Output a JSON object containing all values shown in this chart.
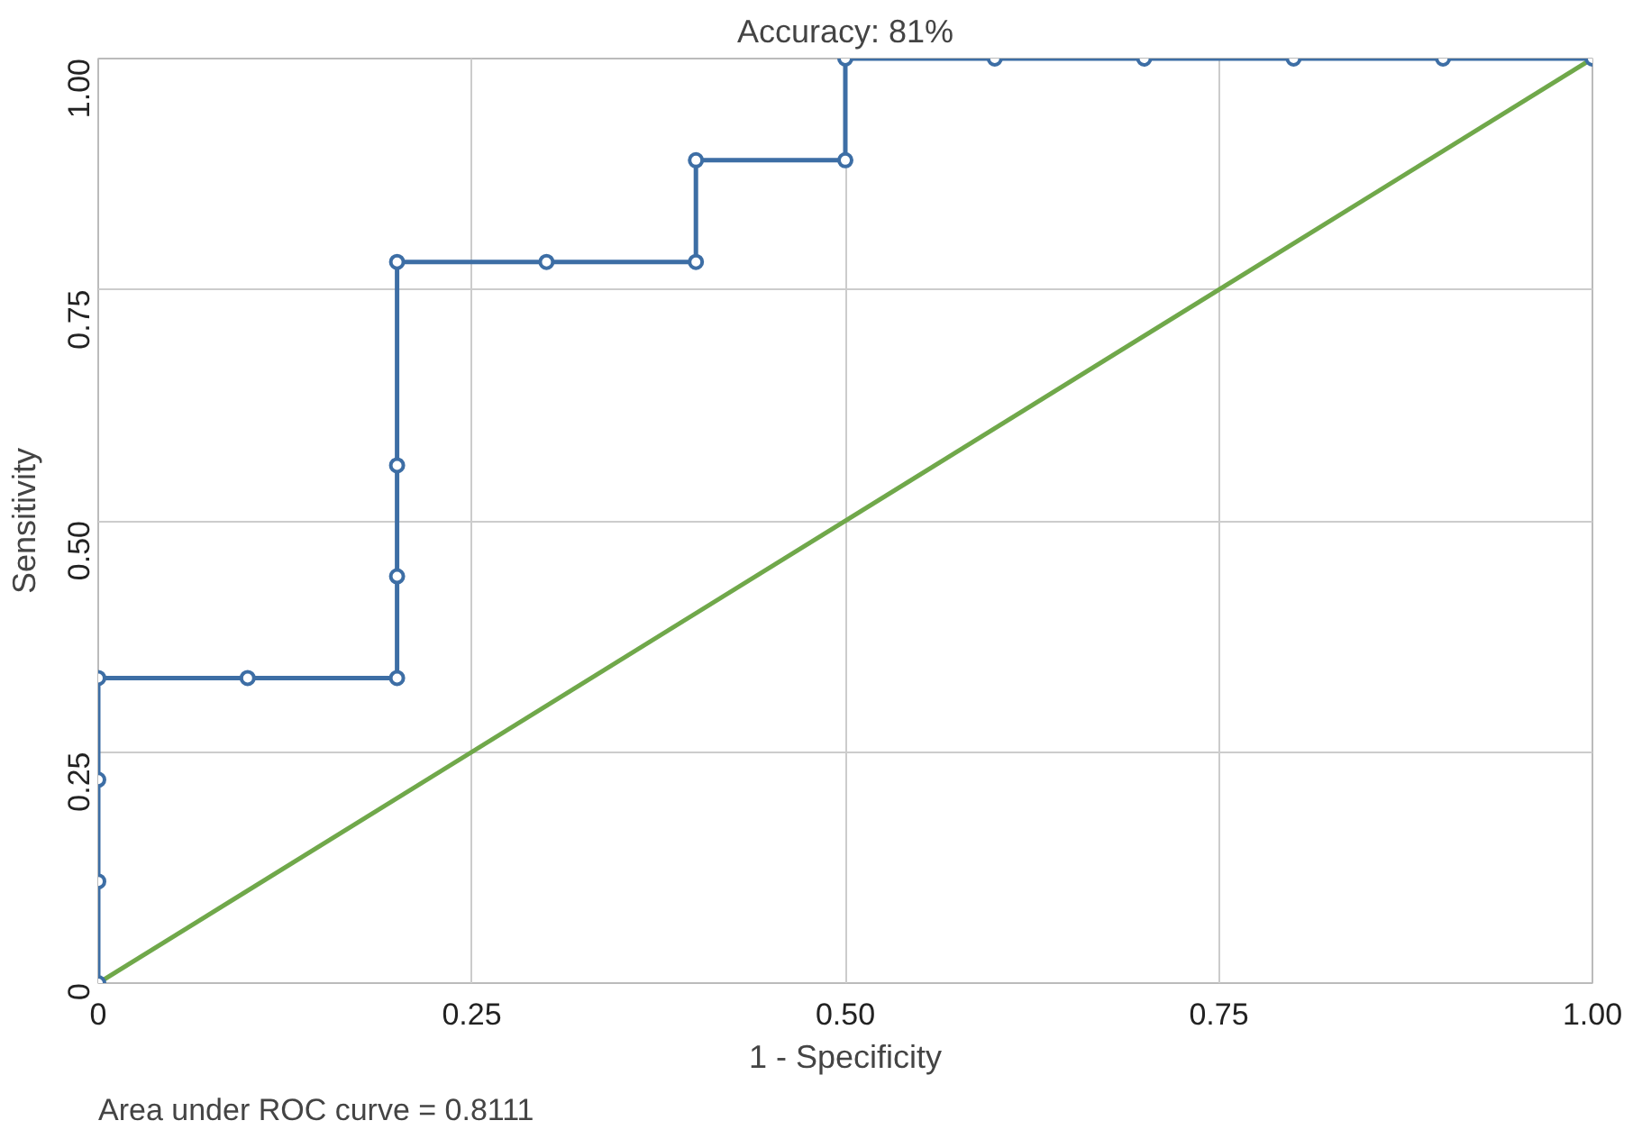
{
  "chart_data": {
    "type": "line",
    "title": "Accuracy: 81%",
    "xlabel": "1 - Specificity",
    "ylabel": "Sensitivity",
    "annotations": [
      "Area under ROC curve = 0.8111"
    ],
    "series": [
      {
        "color": "#3d6ea5",
        "marker": "circle",
        "x": [
          0,
          0,
          0,
          0,
          0.1,
          0.2,
          0.2,
          0.2,
          0.2,
          0.3,
          0.4,
          0.4,
          0.5,
          0.5,
          0.6,
          0.7,
          0.8,
          0.9,
          1
        ],
        "values": [
          0,
          0.11,
          0.22,
          0.33,
          0.33,
          0.33,
          0.44,
          0.56,
          0.78,
          0.78,
          0.78,
          0.89,
          0.89,
          1,
          1,
          1,
          1,
          1,
          1
        ]
      },
      {
        "color": "#70a84a",
        "x": [
          0,
          1
        ],
        "values": [
          0,
          1
        ]
      }
    ],
    "xlim": [
      0,
      1
    ],
    "ylim": [
      0,
      1
    ],
    "xticks": [
      0,
      0.25,
      {
        "value": 0.5,
        "label": "0.50"
      },
      0.75,
      {
        "value": 1,
        "label": "1.00"
      }
    ],
    "yticks": [
      0,
      0.25,
      {
        "value": 0.5,
        "label": "0.50"
      },
      0.75,
      {
        "value": 1,
        "label": "1.00"
      }
    ],
    "grid": true
  }
}
